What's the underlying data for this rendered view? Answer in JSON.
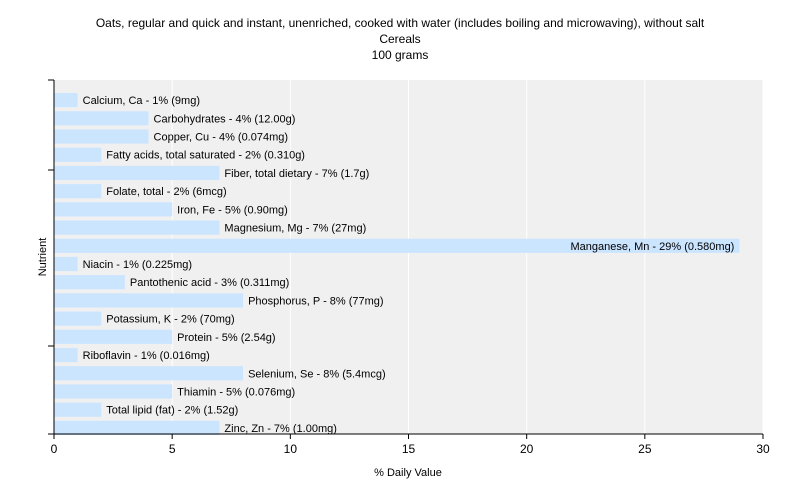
{
  "chart_data": {
    "type": "bar",
    "orientation": "horizontal",
    "title": "Oats, regular and quick and instant, unenriched, cooked with water (includes boiling and microwaving), without salt",
    "subtitle": "Cereals",
    "subtitle2": "100 grams",
    "xlabel": "% Daily Value",
    "ylabel": "Nutrient",
    "xlim": [
      0,
      30
    ],
    "xticks": [
      0,
      5,
      10,
      15,
      20,
      25,
      30
    ],
    "grid": true,
    "bar_color": "#cce5ff",
    "background_color": "#f0f0f0",
    "categories": [
      "Calcium, Ca - 1% (9mg)",
      "Carbohydrates - 4% (12.00g)",
      "Copper, Cu - 4% (0.074mg)",
      "Fatty acids, total saturated - 2% (0.310g)",
      "Fiber, total dietary - 7% (1.7g)",
      "Folate, total - 2% (6mcg)",
      "Iron, Fe - 5% (0.90mg)",
      "Magnesium, Mg - 7% (27mg)",
      "Manganese, Mn - 29% (0.580mg)",
      "Niacin - 1% (0.225mg)",
      "Pantothenic acid - 3% (0.311mg)",
      "Phosphorus, P - 8% (77mg)",
      "Potassium, K - 2% (70mg)",
      "Protein - 5% (2.54g)",
      "Riboflavin - 1% (0.016mg)",
      "Selenium, Se - 8% (5.4mcg)",
      "Thiamin - 5% (0.076mg)",
      "Total lipid (fat) - 2% (1.52g)",
      "Zinc, Zn - 7% (1.00mg)"
    ],
    "values": [
      1,
      4,
      4,
      2,
      7,
      2,
      5,
      7,
      29,
      1,
      3,
      8,
      2,
      5,
      1,
      8,
      5,
      2,
      7
    ]
  }
}
